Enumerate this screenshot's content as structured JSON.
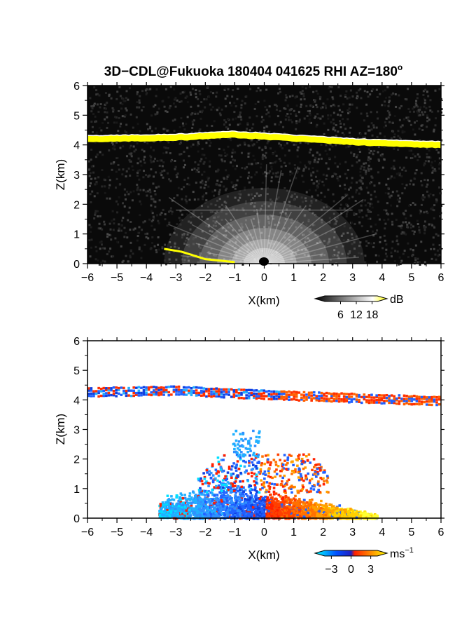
{
  "figure": {
    "title": "3D−CDL@Fukuoka 180404 041625 RHI AZ=180",
    "title_superscript": "o"
  },
  "chart_data": [
    {
      "type": "heatmap",
      "name": "reflectivity-panel",
      "xlabel": "X(km)",
      "ylabel": "Z(km)",
      "xlim": [
        -6,
        6
      ],
      "ylim": [
        0,
        6
      ],
      "x_ticks": [
        "−6",
        "−5",
        "−4",
        "−3",
        "−2",
        "−1",
        "0",
        "1",
        "2",
        "3",
        "4",
        "5",
        "6"
      ],
      "y_ticks": [
        "0",
        "1",
        "2",
        "3",
        "4",
        "5",
        "6"
      ],
      "colorbar": {
        "unit": "dB",
        "unit_superscript": "",
        "ticks": [
          "6",
          "12",
          "18"
        ],
        "tick_values": [
          6,
          12,
          18
        ],
        "range": [
          0,
          20
        ],
        "colors": [
          "#000000",
          "#ffffff",
          "#ffff00"
        ]
      },
      "features": {
        "bright_layer_height_km": [
          4.2,
          4.25,
          4.35,
          4.1,
          4.0
        ],
        "bright_layer_x_km": [
          -6,
          -3,
          -1,
          3,
          6
        ],
        "surface_echo_x_km": [
          -3.4,
          -2.8,
          -2.0,
          -1.0
        ],
        "surface_echo_z_km": [
          0.5,
          0.4,
          0.15,
          0.05
        ]
      }
    },
    {
      "type": "heatmap",
      "name": "velocity-panel",
      "xlabel": "X(km)",
      "ylabel": "Z(km)",
      "xlim": [
        -6,
        6
      ],
      "ylim": [
        0,
        6
      ],
      "x_ticks": [
        "−6",
        "−5",
        "−4",
        "−3",
        "−2",
        "−1",
        "0",
        "1",
        "2",
        "3",
        "4",
        "5",
        "6"
      ],
      "y_ticks": [
        "0",
        "1",
        "2",
        "3",
        "4",
        "5",
        "6"
      ],
      "colorbar": {
        "unit": "ms",
        "unit_superscript": "−1",
        "ticks": [
          "−3",
          "0",
          "3"
        ],
        "tick_values": [
          -3,
          0,
          3
        ],
        "range": [
          -4,
          4
        ],
        "colors": [
          "#00ffff",
          "#0050ff",
          "#ff0000",
          "#ffff00"
        ]
      },
      "features": {
        "layer_height_km": [
          4.3,
          4.35,
          4.25,
          4.1,
          4.0
        ],
        "layer_x_km": [
          -6,
          -3,
          -1,
          3,
          6
        ],
        "negative_region_x_km": [
          -3.5,
          0
        ],
        "positive_region_x_km": [
          0,
          3.8
        ],
        "echo_top_km": 3.0
      }
    }
  ]
}
